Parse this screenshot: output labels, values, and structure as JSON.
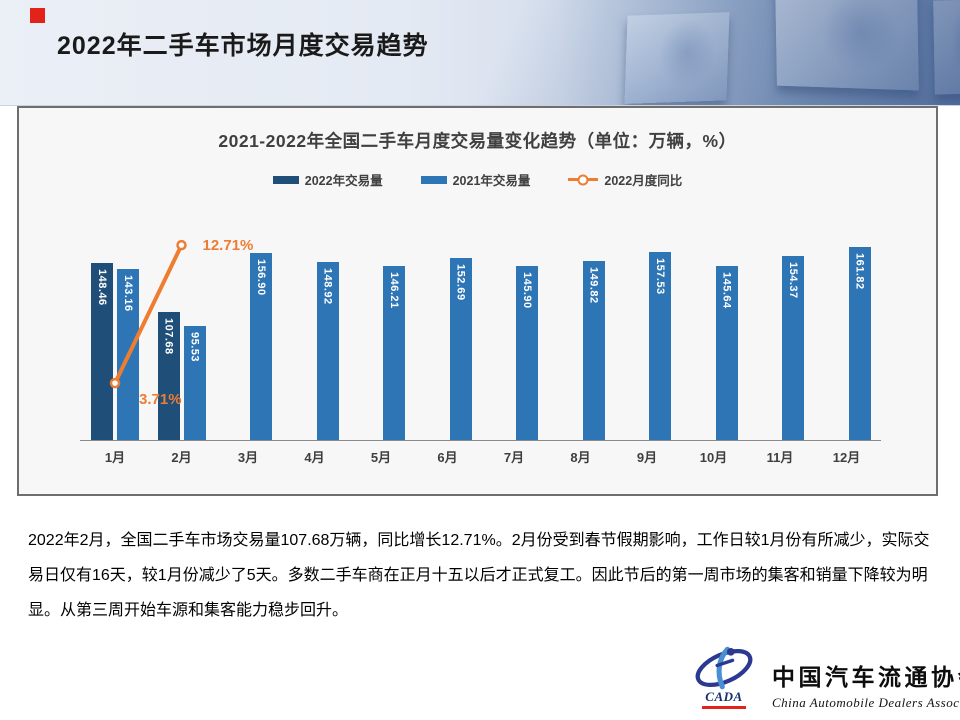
{
  "slide": {
    "title": "2022年二手车市场月度交易趋势"
  },
  "chart": {
    "title": "2021-2022年全国二手车月度交易量变化趋势（单位：万辆，%）",
    "legend": [
      {
        "label": "2022年交易量",
        "marker": "bar",
        "color": "#1F4E79"
      },
      {
        "label": "2021年交易量",
        "marker": "bar",
        "color": "#2E75B6"
      },
      {
        "label": "2022月度同比",
        "marker": "line",
        "color": "#ED7D31"
      }
    ]
  },
  "chart_data": {
    "type": "bar",
    "title": "2021-2022年全国二手车月度交易量变化趋势（单位：万辆，%）",
    "categories": [
      "1月",
      "2月",
      "3月",
      "4月",
      "5月",
      "6月",
      "7月",
      "8月",
      "9月",
      "10月",
      "11月",
      "12月"
    ],
    "series": [
      {
        "name": "2022年交易量",
        "type": "bar",
        "color": "#1F4E79",
        "values": [
          148.46,
          107.68,
          null,
          null,
          null,
          null,
          null,
          null,
          null,
          null,
          null,
          null
        ]
      },
      {
        "name": "2021年交易量",
        "type": "bar",
        "color": "#2E75B6",
        "values": [
          143.16,
          95.53,
          156.9,
          148.92,
          146.21,
          152.69,
          145.9,
          149.82,
          157.53,
          145.64,
          154.37,
          161.82
        ]
      },
      {
        "name": "2022月度同比",
        "type": "line",
        "color": "#ED7D31",
        "unit": "%",
        "values": [
          3.71,
          12.71,
          null,
          null,
          null,
          null,
          null,
          null,
          null,
          null,
          null,
          null
        ],
        "point_labels": [
          "3.71%",
          "12.71%"
        ]
      }
    ],
    "xlabel": "",
    "ylabel": "万辆",
    "ylim": [
      0,
      175
    ],
    "y2lim": [
      0,
      22
    ],
    "grid": false,
    "legend_position": "top",
    "value_labels": "vertical-on-bar"
  },
  "commentary": "2022年2月，全国二手车市场交易量107.68万辆，同比增长12.71%。2月份受到春节假期影响，工作日较1月份有所减少，实际交易日仅有16天，较1月份减少了5天。多数二手车商在正月十五以后才正式复工。因此节后的第一周市场的集客和销量下降较为明显。从第三周开始车源和集客能力稳步回升。",
  "logo": {
    "acronym": "CADA",
    "name_cn": "中国汽车流通协会",
    "name_en": "China Automobile Dealers Association"
  },
  "colors": {
    "bar_2022": "#1F4E79",
    "bar_2021": "#2E75B6",
    "line_yoy": "#ED7D31",
    "accent_red": "#E2231A",
    "panel_bg": "#F7F7F7",
    "panel_border": "#6E6E6E",
    "text_dark": "#404040"
  }
}
